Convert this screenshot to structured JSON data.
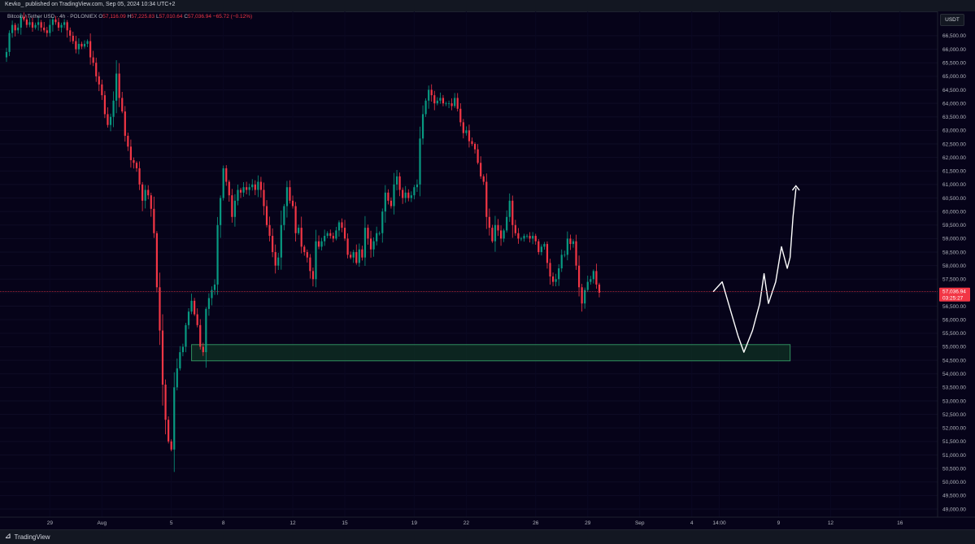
{
  "header": {
    "publish_line": "Kevko_ published on TradingView.com, Sep 05, 2024 10:34 UTC+2"
  },
  "legend": {
    "symbol": "Bitcoin / Tether USD · 4h · POLONIEX",
    "open_label": "O",
    "open": "57,116.09",
    "high_label": "H",
    "high": "57,225.83",
    "low_label": "L",
    "low": "57,010.64",
    "close_label": "C",
    "close": "57,036.94",
    "change": "−65.72 (−0.12%)"
  },
  "currency_button": "USDT",
  "footer": {
    "brand": "TradingView",
    "brand_icon": "tradingview-logo-icon"
  },
  "price_badge": {
    "price": "57,036.94",
    "countdown": "03:25:27"
  },
  "colors": {
    "background": "#060319",
    "up": "#089981",
    "down": "#f23645",
    "zone_fill": "#0e2c22",
    "zone_border": "#2f8f5e",
    "drawing": "#ffffff"
  },
  "chart_data": {
    "type": "candlestick",
    "y_axis": {
      "ylim": [
        48700,
        67400
      ],
      "tick_labels": [
        "66,500.00",
        "66,000.00",
        "65,500.00",
        "65,000.00",
        "64,500.00",
        "64,000.00",
        "63,500.00",
        "63,000.00",
        "62,500.00",
        "62,000.00",
        "61,500.00",
        "61,000.00",
        "60,500.00",
        "60,000.00",
        "59,500.00",
        "59,000.00",
        "58,500.00",
        "58,000.00",
        "57,500.00",
        "57,000.00",
        "56,500.00",
        "56,000.00",
        "55,500.00",
        "55,000.00",
        "54,500.00",
        "54,000.00",
        "53,500.00",
        "53,000.00",
        "52,500.00",
        "52,000.00",
        "51,500.00",
        "51,000.00",
        "50,500.00",
        "50,000.00",
        "49,500.00",
        "49,000.00"
      ]
    },
    "x_axis": {
      "range": [
        "2024-07-26T12:00",
        "2024-09-18T04:00"
      ],
      "ticks": [
        {
          "label": "29",
          "t": "2024-07-29T00:00"
        },
        {
          "label": "Aug",
          "t": "2024-08-01T00:00"
        },
        {
          "label": "5",
          "t": "2024-08-05T00:00"
        },
        {
          "label": "8",
          "t": "2024-08-08T00:00"
        },
        {
          "label": "12",
          "t": "2024-08-12T00:00"
        },
        {
          "label": "15",
          "t": "2024-08-15T00:00"
        },
        {
          "label": "19",
          "t": "2024-08-19T00:00"
        },
        {
          "label": "22",
          "t": "2024-08-22T00:00"
        },
        {
          "label": "26",
          "t": "2024-08-26T00:00"
        },
        {
          "label": "29",
          "t": "2024-08-29T00:00"
        },
        {
          "label": "Sep",
          "t": "2024-09-01T00:00"
        },
        {
          "label": "4",
          "t": "2024-09-04T00:00"
        },
        {
          "label": "14:00",
          "t": "2024-09-05T14:00"
        },
        {
          "label": "9",
          "t": "2024-09-09T00:00"
        },
        {
          "label": "12",
          "t": "2024-09-12T00:00"
        },
        {
          "label": "16",
          "t": "2024-09-16T00:00"
        }
      ]
    },
    "timeframe": "4h",
    "first_candle": "2024-07-26T12:00",
    "closes": [
      65900,
      66600,
      66900,
      66700,
      66800,
      67200,
      67100,
      66900,
      67000,
      66800,
      66900,
      67000,
      66800,
      66700,
      66600,
      66900,
      67100,
      67000,
      66800,
      66900,
      67000,
      66700,
      66500,
      66300,
      66000,
      66200,
      66100,
      66200,
      66300,
      65700,
      65500,
      65000,
      64700,
      64300,
      63600,
      63200,
      63500,
      64100,
      65100,
      64200,
      63700,
      62800,
      62400,
      61900,
      61800,
      61600,
      61000,
      60400,
      60800,
      60600,
      60100,
      59200,
      57200,
      55600,
      53600,
      52300,
      51500,
      51200,
      53500,
      54200,
      54800,
      55000,
      55800,
      56300,
      56700,
      56200,
      55800,
      55000,
      54800,
      56400,
      56800,
      57100,
      57300,
      59500,
      60500,
      61600,
      61100,
      60600,
      59800,
      60400,
      60800,
      60700,
      60900,
      60800,
      60900,
      61000,
      60800,
      61100,
      60800,
      60200,
      59500,
      59100,
      58500,
      58000,
      58300,
      59500,
      60200,
      60900,
      60400,
      60200,
      59200,
      59400,
      58700,
      58500,
      58300,
      57800,
      57500,
      58900,
      58700,
      58900,
      59100,
      59200,
      59100,
      59000,
      59300,
      59600,
      59400,
      59000,
      58400,
      58300,
      58500,
      58100,
      58600,
      58300,
      59400,
      59000,
      58600,
      58900,
      59200,
      59200,
      60000,
      60700,
      60400,
      60200,
      61000,
      61300,
      60800,
      60500,
      60700,
      60500,
      60600,
      60900,
      61000,
      62700,
      63600,
      64100,
      64500,
      64300,
      64000,
      64100,
      64200,
      64000,
      64000,
      64000,
      63900,
      64200,
      63800,
      63300,
      62900,
      63000,
      62600,
      62500,
      62300,
      61800,
      61300,
      61100,
      59800,
      59400,
      58900,
      59500,
      59300,
      59000,
      59300,
      59800,
      60400,
      59500,
      59200,
      59000,
      59000,
      59100,
      59100,
      59000,
      59100,
      58900,
      58500,
      58700,
      58800,
      58100,
      57600,
      57400,
      57500,
      57900,
      58400,
      58400,
      59000,
      58800,
      58900,
      58000,
      57200,
      56600,
      57100,
      57400,
      57500,
      57800,
      57300,
      57000
    ]
  }
}
